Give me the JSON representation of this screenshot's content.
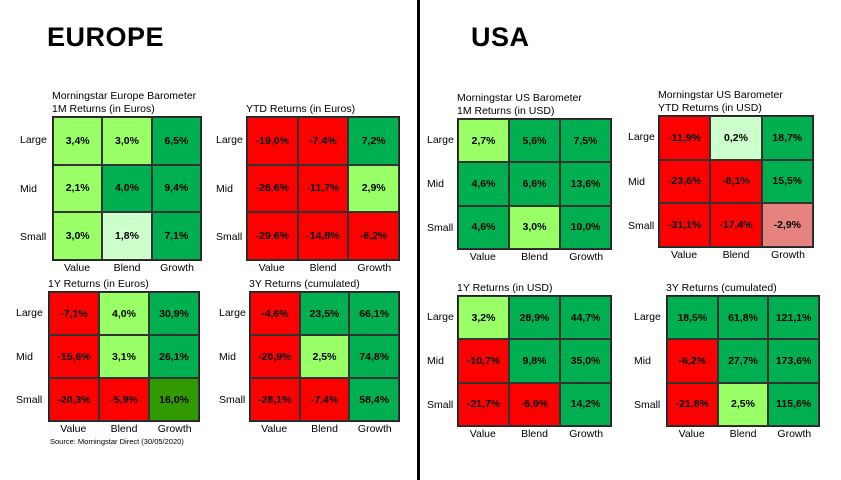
{
  "regions": [
    "EUROPE",
    "USA"
  ],
  "source": "Source: Morningstar Direct (30/05/2020)",
  "colors": {
    "R": "#FF0000",
    "G": "#00B050",
    "L": "#99FF66",
    "P": "#CCFFCC",
    "O": "#339900",
    "K": "#E6837F"
  },
  "chart_data": [
    {
      "type": "heatmap",
      "region": "EUROPE",
      "title": [
        "Morningstar Europe Barometer",
        "1M Returns (in Euros)"
      ],
      "rows": [
        "Large",
        "Mid",
        "Small"
      ],
      "cols": [
        "Value",
        "Blend",
        "Growth"
      ],
      "values": [
        [
          "3,4%",
          "3,0%",
          "6,5%"
        ],
        [
          "2,1%",
          "4,0%",
          "9,4%"
        ],
        [
          "3,0%",
          "1,8%",
          "7,1%"
        ]
      ],
      "fill": [
        [
          "L",
          "L",
          "G"
        ],
        [
          "L",
          "G",
          "G"
        ],
        [
          "L",
          "P",
          "G"
        ]
      ]
    },
    {
      "type": "heatmap",
      "region": "EUROPE",
      "title": [
        "YTD Returns (in Euros)"
      ],
      "rows": [
        "Large",
        "Mid",
        "Small"
      ],
      "cols": [
        "Value",
        "Blend",
        "Growth"
      ],
      "values": [
        [
          "-19,0%",
          "-7,4%",
          "7,2%"
        ],
        [
          "-26,6%",
          "-11,7%",
          "2,9%"
        ],
        [
          "-29,6%",
          "-14,8%",
          "-6,2%"
        ]
      ],
      "fill": [
        [
          "R",
          "R",
          "G"
        ],
        [
          "R",
          "R",
          "L"
        ],
        [
          "R",
          "R",
          "R"
        ]
      ]
    },
    {
      "type": "heatmap",
      "region": "EUROPE",
      "title": [
        "1Y Returns (in Euros)"
      ],
      "rows": [
        "Large",
        "Mid",
        "Small"
      ],
      "cols": [
        "Value",
        "Blend",
        "Growth"
      ],
      "values": [
        [
          "-7,1%",
          "4,0%",
          "30,9%"
        ],
        [
          "-15,6%",
          "3,1%",
          "26,1%"
        ],
        [
          "-20,3%",
          "-5,9%",
          "16,0%"
        ]
      ],
      "fill": [
        [
          "R",
          "L",
          "G"
        ],
        [
          "R",
          "L",
          "G"
        ],
        [
          "R",
          "R",
          "O"
        ]
      ]
    },
    {
      "type": "heatmap",
      "region": "EUROPE",
      "title": [
        "3Y Returns (cumulated)"
      ],
      "rows": [
        "Large",
        "Mid",
        "Small"
      ],
      "cols": [
        "Value",
        "Blend",
        "Growth"
      ],
      "values": [
        [
          "-4,6%",
          "23,5%",
          "66,1%"
        ],
        [
          "-20,9%",
          "2,5%",
          "74,8%"
        ],
        [
          "-28,1%",
          "-7,4%",
          "58,4%"
        ]
      ],
      "fill": [
        [
          "R",
          "G",
          "G"
        ],
        [
          "R",
          "L",
          "G"
        ],
        [
          "R",
          "R",
          "G"
        ]
      ]
    },
    {
      "type": "heatmap",
      "region": "USA",
      "title": [
        "Morningstar US Barometer",
        "1M Returns (in USD)"
      ],
      "rows": [
        "Large",
        "Mid",
        "Small"
      ],
      "cols": [
        "Value",
        "Blend",
        "Growth"
      ],
      "values": [
        [
          "2,7%",
          "5,6%",
          "7,5%"
        ],
        [
          "4,6%",
          "6,6%",
          "13,6%"
        ],
        [
          "4,6%",
          "3,0%",
          "10,0%"
        ]
      ],
      "fill": [
        [
          "L",
          "G",
          "G"
        ],
        [
          "G",
          "G",
          "G"
        ],
        [
          "G",
          "L",
          "G"
        ]
      ]
    },
    {
      "type": "heatmap",
      "region": "USA",
      "title": [
        "Morningstar US Barometer",
        "YTD Returns (in USD)"
      ],
      "rows": [
        "Large",
        "Mid",
        "Small"
      ],
      "cols": [
        "Value",
        "Blend",
        "Growth"
      ],
      "values": [
        [
          "-11,9%",
          "0,2%",
          "18,7%"
        ],
        [
          "-23,6%",
          "-8,1%",
          "15,5%"
        ],
        [
          "-31,1%",
          "-17,4%",
          "-2,9%"
        ]
      ],
      "fill": [
        [
          "R",
          "P",
          "G"
        ],
        [
          "R",
          "R",
          "G"
        ],
        [
          "R",
          "R",
          "K"
        ]
      ]
    },
    {
      "type": "heatmap",
      "region": "USA",
      "title": [
        "1Y Returns (in USD)"
      ],
      "rows": [
        "Large",
        "Mid",
        "Small"
      ],
      "cols": [
        "Value",
        "Blend",
        "Growth"
      ],
      "values": [
        [
          "3,2%",
          "28,9%",
          "44,7%"
        ],
        [
          "-10,7%",
          "9,8%",
          "35,0%"
        ],
        [
          "-21,7%",
          "-6,9%",
          "14,2%"
        ]
      ],
      "fill": [
        [
          "L",
          "G",
          "G"
        ],
        [
          "R",
          "G",
          "G"
        ],
        [
          "R",
          "R",
          "G"
        ]
      ]
    },
    {
      "type": "heatmap",
      "region": "USA",
      "title": [
        "3Y Returns (cumulated)"
      ],
      "rows": [
        "Large",
        "Mid",
        "Small"
      ],
      "cols": [
        "Value",
        "Blend",
        "Growth"
      ],
      "values": [
        [
          "18,5%",
          "61,8%",
          "121,1%"
        ],
        [
          "-6,2%",
          "27,7%",
          "173,6%"
        ],
        [
          "-21,8%",
          "2,5%",
          "115,6%"
        ]
      ],
      "fill": [
        [
          "G",
          "G",
          "G"
        ],
        [
          "R",
          "G",
          "G"
        ],
        [
          "R",
          "L",
          "G"
        ]
      ]
    }
  ]
}
